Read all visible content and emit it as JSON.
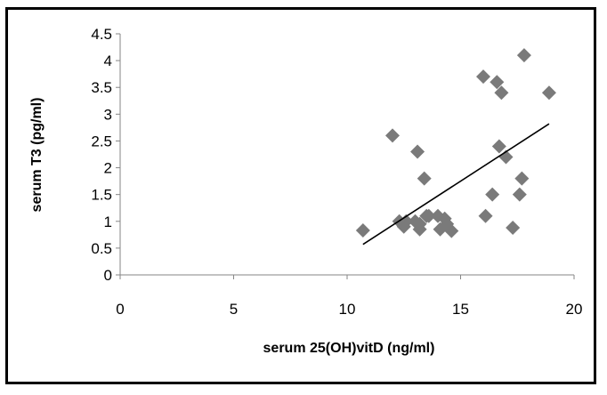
{
  "chart_data": {
    "type": "scatter",
    "xlabel": "serum 25(OH)vitD (ng/ml)",
    "ylabel": "serum T3 (pg/ml)",
    "xlim": [
      0,
      20
    ],
    "ylim": [
      0,
      4.5
    ],
    "x_ticks": [
      "0",
      "5",
      "10",
      "15",
      "20"
    ],
    "y_ticks": [
      "0",
      "0.5",
      "1",
      "1.5",
      "2",
      "2.5",
      "3",
      "3.5",
      "4",
      "4.5"
    ],
    "grid": false,
    "legend": "none",
    "marker": "diamond",
    "marker_color": "#7a7a7a",
    "trendline": {
      "type": "linear",
      "x": [
        10.7,
        18.9
      ],
      "y": [
        0.57,
        2.82
      ]
    },
    "series": [
      {
        "x": [
          10.7,
          12.0,
          12.3,
          12.5,
          12.6,
          13.0,
          13.1,
          13.2,
          13.2,
          13.4,
          13.5,
          13.6,
          14.0,
          14.1,
          14.3,
          14.4,
          14.6,
          16.0,
          16.1,
          16.4,
          16.6,
          16.7,
          16.8,
          17.0,
          17.3,
          17.6,
          17.7,
          17.8,
          18.9
        ],
        "y": [
          0.83,
          2.6,
          1.0,
          0.9,
          1.0,
          1.0,
          2.3,
          0.85,
          0.95,
          1.8,
          1.1,
          1.1,
          1.1,
          0.85,
          1.05,
          0.95,
          0.82,
          3.7,
          1.1,
          1.5,
          3.6,
          2.4,
          3.4,
          2.2,
          0.88,
          1.5,
          1.8,
          4.1,
          3.4
        ]
      }
    ]
  }
}
